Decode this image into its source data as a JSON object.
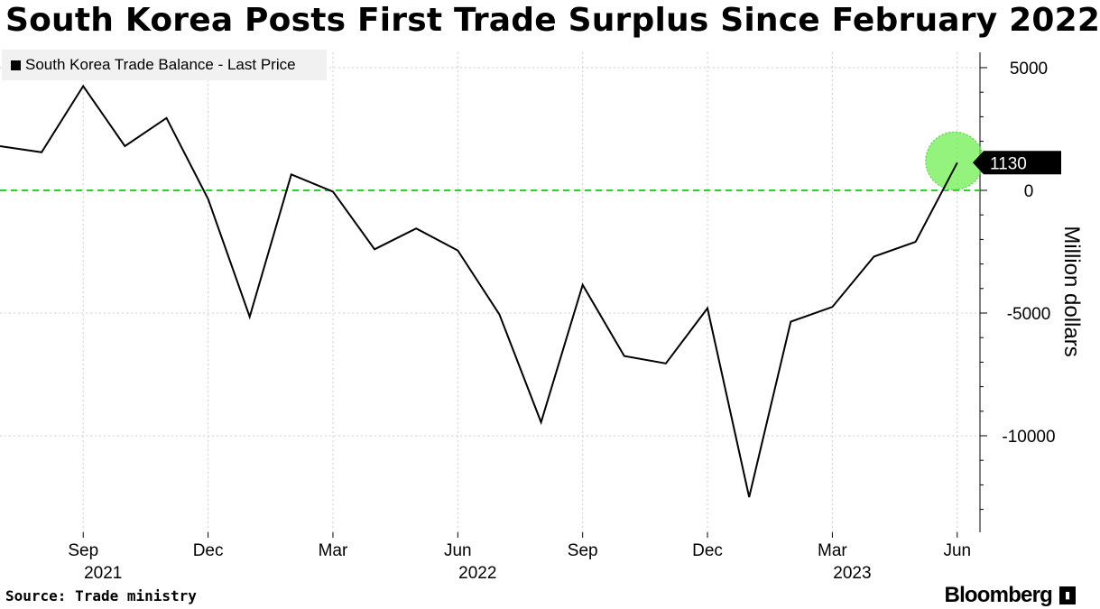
{
  "title": "South Korea Posts First Trade Surplus Since February 2022",
  "legend": {
    "label": "South Korea Trade Balance - Last Price"
  },
  "source": "Source: Trade ministry",
  "brand": "Bloomberg",
  "colors": {
    "line": "#000000",
    "zero_line": "#33cc33",
    "highlight": "#66ee44",
    "grid": "#cccccc",
    "legend_bg": "#f1f1f1"
  },
  "chart_data": {
    "type": "line",
    "title": "South Korea Posts First Trade Surplus Since February 2022",
    "xlabel": "",
    "ylabel": "Million dollars",
    "ylim": [
      -13500,
      6000
    ],
    "yticks": [
      5000,
      0,
      -5000,
      -10000
    ],
    "ytick_labels": [
      "5000",
      "0",
      "-5000",
      "-10000"
    ],
    "grid": true,
    "legend_position": "top-left",
    "zero_line": 0,
    "last_value_label": "1130",
    "x_ticks": [
      {
        "month": "Sep",
        "year": "2021",
        "date": "2021-09"
      },
      {
        "month": "Dec",
        "year": "",
        "date": "2021-12"
      },
      {
        "month": "Mar",
        "year": "",
        "date": "2022-03"
      },
      {
        "month": "Jun",
        "year": "2022",
        "date": "2022-06"
      },
      {
        "month": "Sep",
        "year": "",
        "date": "2022-09"
      },
      {
        "month": "Dec",
        "year": "",
        "date": "2022-12"
      },
      {
        "month": "Mar",
        "year": "2023",
        "date": "2023-03"
      },
      {
        "month": "Jun",
        "year": "",
        "date": "2023-06"
      }
    ],
    "series": [
      {
        "name": "South Korea Trade Balance - Last Price",
        "x": [
          "2021-07",
          "2021-08",
          "2021-09",
          "2021-10",
          "2021-11",
          "2021-12",
          "2022-01",
          "2022-02",
          "2022-03",
          "2022-04",
          "2022-05",
          "2022-06",
          "2022-07",
          "2022-08",
          "2022-09",
          "2022-10",
          "2022-11",
          "2022-12",
          "2023-01",
          "2023-02",
          "2023-03",
          "2023-04",
          "2023-05",
          "2023-06"
        ],
        "values": [
          1800,
          1550,
          4250,
          1800,
          2950,
          -350,
          -5150,
          650,
          -50,
          -2400,
          -1550,
          -2450,
          -5050,
          -9450,
          -3850,
          -6750,
          -7050,
          -4800,
          -12500,
          -5350,
          -4750,
          -2700,
          -2100,
          1130
        ]
      }
    ]
  }
}
